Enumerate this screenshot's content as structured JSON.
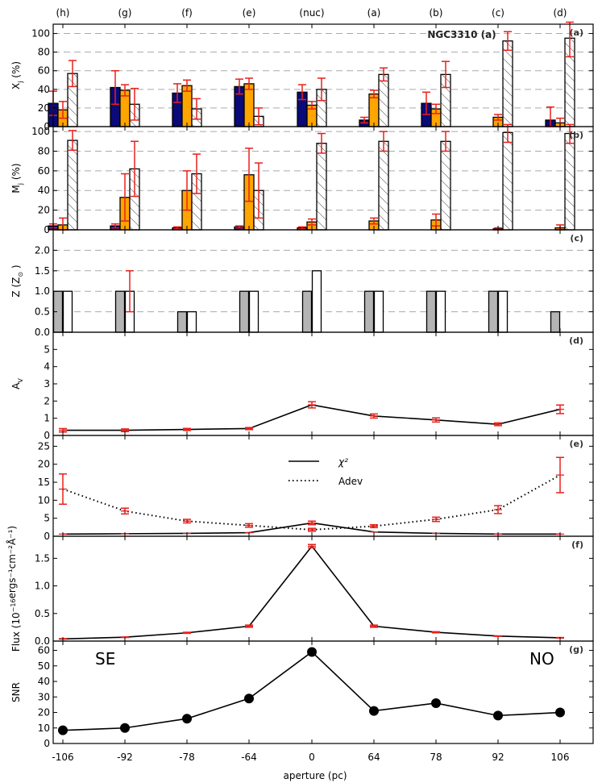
{
  "chart_data": {
    "type": "multi-panel",
    "title": "NGC3310 (a)",
    "xlabel": "aperture (pc)",
    "top_labels": [
      "(h)",
      "(g)",
      "(f)",
      "(e)",
      "(nuc)",
      "(a)",
      "(b)",
      "(c)",
      "(d)"
    ],
    "bottom_labels": [
      "-106",
      "-92",
      "-78",
      "-64",
      "0",
      "64",
      "78",
      "92",
      "106"
    ],
    "colors": {
      "young": "#0a0a78",
      "intermediate": "#ffa500",
      "old": "#ffffff",
      "Z_a": "#b4b4b4",
      "Z_b": "#ffffff",
      "error": "#e8201c",
      "line": "#000000",
      "grid": "#aaaaaa"
    },
    "panels": [
      {
        "id": "a",
        "tag": "(a)",
        "type": "bar",
        "ylabel_main": "X",
        "ylabel_sub": "j",
        "ylabel_unit": "(%)",
        "ylim": [
          0,
          110
        ],
        "yticks": [
          "0",
          "20",
          "40",
          "60",
          "80",
          "100"
        ],
        "ytick_values": [
          0,
          20,
          40,
          60,
          80,
          100
        ],
        "gridlines": [
          20,
          40,
          60,
          80,
          100
        ],
        "series": [
          {
            "name": "young",
            "values": [
              25,
              42,
              36,
              43,
              37,
              7,
              25,
              0,
              7
            ],
            "err": [
              13,
              18,
              10,
              8,
              8,
              3,
              12,
              0,
              14
            ]
          },
          {
            "name": "intermediate",
            "values": [
              18,
              39,
              44,
              46,
              23,
              35,
              19,
              10,
              4
            ],
            "err": [
              9,
              6,
              6,
              6,
              4,
              4,
              5,
              3,
              5
            ]
          },
          {
            "name": "old",
            "values": [
              57,
              24,
              19,
              11,
              40,
              56,
              56,
              92,
              95
            ],
            "err": [
              14,
              17,
              11,
              9,
              12,
              7,
              14,
              10,
              20
            ]
          }
        ]
      },
      {
        "id": "b",
        "tag": "(b)",
        "type": "bar",
        "ylabel_main": "M",
        "ylabel_sub": "j",
        "ylabel_unit": "(%)",
        "ylim": [
          0,
          105
        ],
        "yticks": [
          "0",
          "20",
          "40",
          "60",
          "80",
          "100"
        ],
        "ytick_values": [
          0,
          20,
          40,
          60,
          80,
          100
        ],
        "gridlines": [
          20,
          40,
          60,
          80,
          100
        ],
        "series": [
          {
            "name": "young",
            "values": [
              4,
              4,
              2,
              3,
              2,
              0,
              0,
              0,
              0
            ],
            "err": [
              2,
              2,
              1,
              1,
              1,
              0,
              0,
              0,
              0
            ]
          },
          {
            "name": "intermediate",
            "values": [
              5,
              33,
              40,
              56,
              8,
              9,
              10,
              1,
              2
            ],
            "err": [
              7,
              24,
              20,
              27,
              3,
              3,
              6,
              1,
              3
            ]
          },
          {
            "name": "old",
            "values": [
              91,
              62,
              57,
              40,
              88,
              90,
              90,
              99,
              98
            ],
            "err": [
              10,
              28,
              20,
              28,
              10,
              10,
              10,
              10,
              10
            ]
          }
        ]
      },
      {
        "id": "c",
        "tag": "(c)",
        "type": "bar",
        "ylabel_main": "Z (Z",
        "ylabel_sub": "⊙",
        "ylabel_unit": ")",
        "ylim": [
          0,
          2.5
        ],
        "yticks": [
          "0.0",
          "0.5",
          "1.0",
          "1.5",
          "2.0"
        ],
        "ytick_values": [
          0,
          0.5,
          1,
          1.5,
          2
        ],
        "gridlines": [
          0.5,
          1,
          1.5,
          2
        ],
        "series": [
          {
            "name": "Z_a",
            "values": [
              1.0,
              1.0,
              0.5,
              1.0,
              1.0,
              1.0,
              1.0,
              1.0,
              0.5
            ],
            "err": [
              0,
              0,
              0,
              0,
              0,
              0,
              0,
              0,
              0
            ]
          },
          {
            "name": "Z_b",
            "values": [
              1.0,
              1.0,
              0.5,
              1.0,
              1.5,
              1.0,
              1.0,
              1.0,
              null
            ],
            "err": [
              0,
              0.5,
              0,
              0,
              0,
              0,
              0,
              0,
              0
            ]
          }
        ]
      },
      {
        "id": "d",
        "tag": "(d)",
        "type": "line",
        "ylabel_main": "A",
        "ylabel_sub": "V",
        "ylabel_unit": "",
        "ylim": [
          0,
          6
        ],
        "yticks": [
          "0",
          "1",
          "2",
          "3",
          "4",
          "5"
        ],
        "ytick_values": [
          0,
          1,
          2,
          3,
          4,
          5
        ],
        "series": [
          {
            "name": "Av",
            "style": "solid",
            "values": [
              0.3,
              0.3,
              0.35,
              0.4,
              1.78,
              1.13,
              0.9,
              0.65,
              1.52
            ],
            "err": [
              0.1,
              0.08,
              0.06,
              0.06,
              0.18,
              0.12,
              0.12,
              0.08,
              0.25
            ]
          }
        ]
      },
      {
        "id": "e",
        "tag": "(e)",
        "type": "line",
        "ylabel_main": "",
        "ylabel_sub": "",
        "ylabel_unit": "",
        "ylim": [
          0,
          28
        ],
        "yticks": [
          "0",
          "5",
          "10",
          "15",
          "20",
          "25"
        ],
        "ytick_values": [
          0,
          5,
          10,
          15,
          20,
          25
        ],
        "legend": [
          "χ²",
          "Adev"
        ],
        "series": [
          {
            "name": "χ²",
            "style": "solid",
            "values": [
              0.6,
              0.7,
              0.8,
              1.0,
              3.7,
              1.2,
              0.8,
              0.6,
              0.6
            ],
            "err": [
              0,
              0,
              0,
              0,
              0.5,
              0,
              0,
              0,
              0
            ]
          },
          {
            "name": "Adev",
            "style": "dotted",
            "values": [
              13.1,
              7.0,
              4.2,
              3.0,
              1.8,
              2.8,
              4.7,
              7.4,
              17.0
            ],
            "err": [
              4.2,
              0.8,
              0.5,
              0.5,
              0.4,
              0.4,
              0.6,
              1.1,
              4.9
            ]
          }
        ]
      },
      {
        "id": "f",
        "tag": "(f)",
        "type": "line",
        "ylabel_main": "Flux (10",
        "ylabel_sup": "−16",
        "ylabel_unit": "ergs⁻¹cm⁻²Å⁻¹)",
        "ylim": [
          0,
          1.9
        ],
        "yticks": [
          "0.0",
          "0.5",
          "1.0",
          "1.5"
        ],
        "ytick_values": [
          0,
          0.5,
          1,
          1.5
        ],
        "series": [
          {
            "name": "flux",
            "style": "solid",
            "values": [
              0.04,
              0.07,
              0.15,
              0.27,
              1.72,
              0.27,
              0.16,
              0.09,
              0.06
            ],
            "err": [
              0.005,
              0.005,
              0.01,
              0.02,
              0.03,
              0.02,
              0.01,
              0.005,
              0.005
            ]
          }
        ]
      },
      {
        "id": "g",
        "tag": "(g)",
        "type": "scatter-line",
        "ylabel_main": "SNR",
        "ylabel_sub": "",
        "ylabel_unit": "",
        "ylim": [
          0,
          66
        ],
        "yticks": [
          "0",
          "10",
          "20",
          "30",
          "40",
          "50",
          "60"
        ],
        "ytick_values": [
          0,
          10,
          20,
          30,
          40,
          50,
          60
        ],
        "annotations": [
          "SE",
          "NO"
        ],
        "series": [
          {
            "name": "SNR",
            "style": "solid",
            "values": [
              8.5,
              10,
              16,
              29,
              59,
              21,
              26,
              18,
              20
            ]
          }
        ]
      }
    ]
  }
}
